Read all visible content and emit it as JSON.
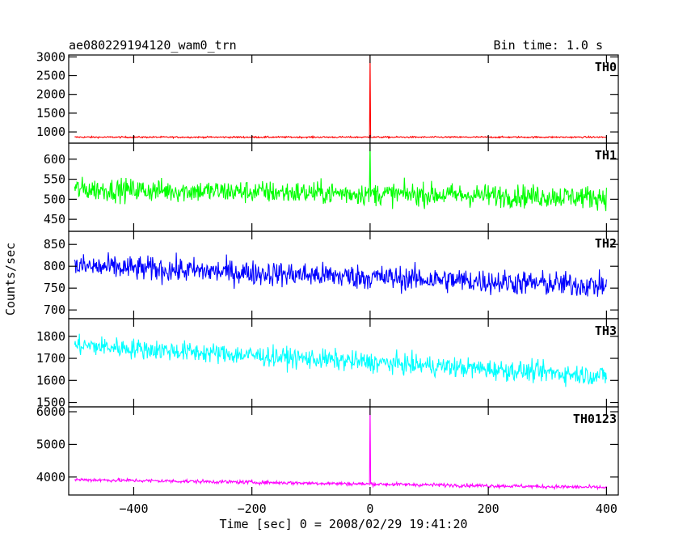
{
  "header": {
    "title": "ae080229194120_wam0_trn",
    "bin_time": "Bin time: 1.0 s"
  },
  "chart_data": {
    "type": "line",
    "title": "ae080229194120_wam0_trn",
    "subtitle": "Bin time: 1.0 s",
    "xlabel": "Time [sec] 0 = 2008/02/29 19:41:20",
    "ylabel": "Counts/sec",
    "xlim": [
      -510,
      420
    ],
    "x_ticks": [
      -400,
      -200,
      0,
      200,
      400
    ],
    "x_tick_labels": [
      "−400",
      "−200",
      "0",
      "200",
      "400"
    ],
    "bin_time_sec": 1.0,
    "x_start": -500,
    "x_end": 400,
    "panels": [
      {
        "name": "TH0",
        "color": "#ff0000",
        "ylim": [
          700,
          3050
        ],
        "y_ticks": [
          1000,
          1500,
          2000,
          2500,
          3000
        ],
        "y_tick_labels": [
          "1000",
          "1500",
          "2000",
          "2500",
          "3000"
        ],
        "trend_start": 860,
        "trend_end": 860,
        "noise": 20,
        "spike_x": 0,
        "spike_y": 3050
      },
      {
        "name": "TH1",
        "color": "#00ff00",
        "ylim": [
          420,
          640
        ],
        "y_ticks": [
          450,
          500,
          550,
          600
        ],
        "y_tick_labels": [
          "450",
          "500",
          "550",
          "600"
        ],
        "trend_start": 525,
        "trend_end": 505,
        "noise": 28,
        "spike_x": 0,
        "spike_y": 640
      },
      {
        "name": "TH2",
        "color": "#0000ff",
        "ylim": [
          680,
          880
        ],
        "y_ticks": [
          700,
          750,
          800,
          850
        ],
        "y_tick_labels": [
          "700",
          "750",
          "800",
          "850"
        ],
        "trend_start": 800,
        "trend_end": 755,
        "noise": 28,
        "spike_x": null,
        "spike_y": null
      },
      {
        "name": "TH3",
        "color": "#00ffff",
        "ylim": [
          1480,
          1880
        ],
        "y_ticks": [
          1500,
          1600,
          1700,
          1800
        ],
        "y_tick_labels": [
          "1500",
          "1600",
          "1700",
          "1800"
        ],
        "trend_start": 1760,
        "trend_end": 1620,
        "noise": 45,
        "spike_x": null,
        "spike_y": null
      },
      {
        "name": "TH0123",
        "color": "#ff00ff",
        "ylim": [
          3450,
          6150
        ],
        "y_ticks": [
          4000,
          5000,
          6000
        ],
        "y_tick_labels": [
          "4000",
          "5000",
          "6000"
        ],
        "trend_start": 3920,
        "trend_end": 3680,
        "noise": 55,
        "spike_x": 0,
        "spike_y": 6150
      }
    ],
    "grid": false,
    "legend": "none"
  }
}
